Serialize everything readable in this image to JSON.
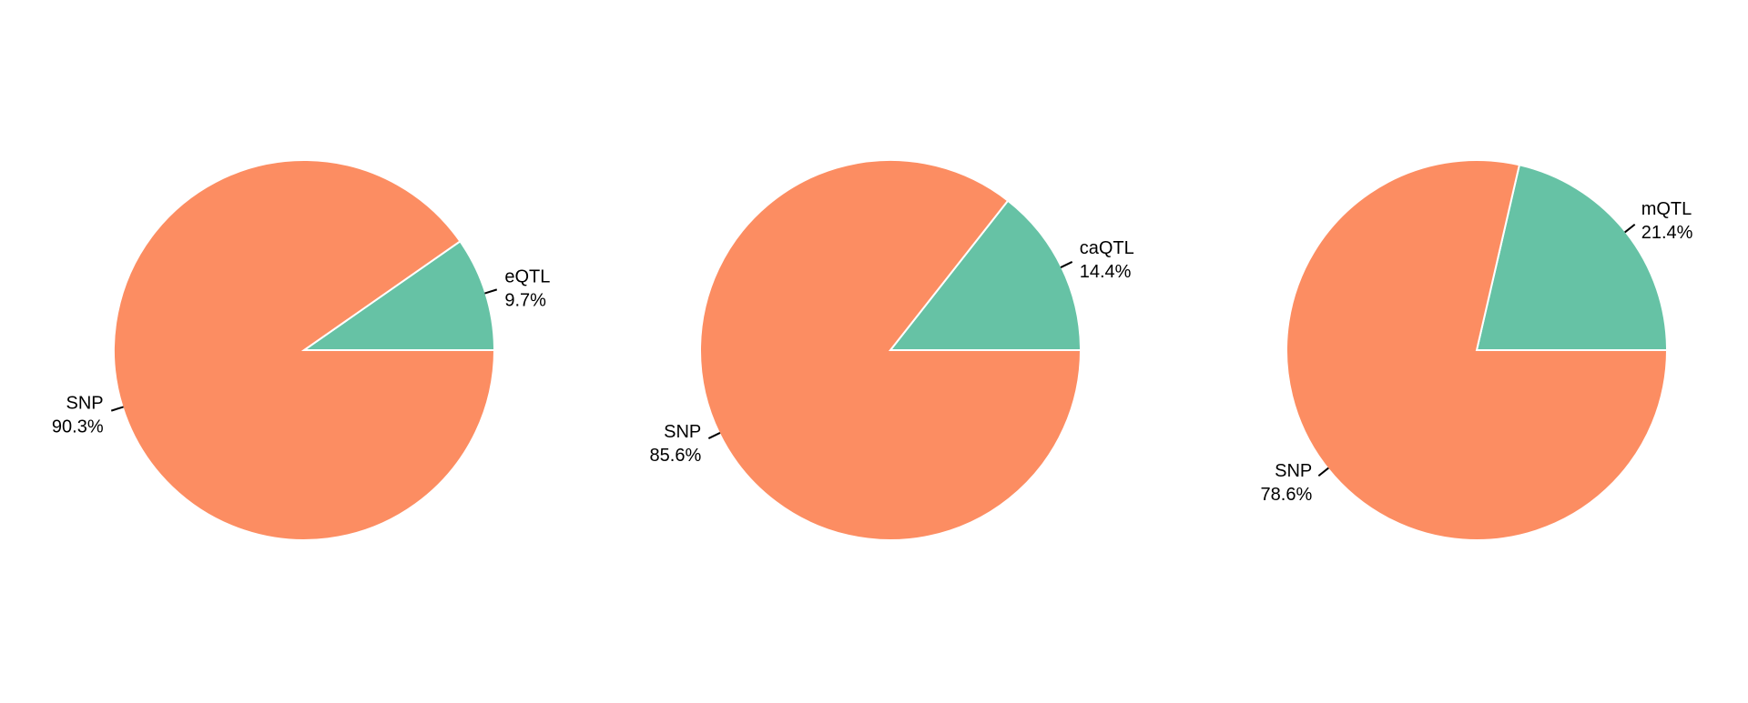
{
  "colors": {
    "qtl": "#66c2a5",
    "snp": "#fc8d62"
  },
  "chart_data": [
    {
      "type": "pie",
      "title": "",
      "slices": [
        {
          "label": "eQTL",
          "value": 9.7,
          "percent": "9.7%"
        },
        {
          "label": "SNP",
          "value": 90.3,
          "percent": "90.3%"
        }
      ]
    },
    {
      "type": "pie",
      "title": "",
      "slices": [
        {
          "label": "caQTL",
          "value": 14.4,
          "percent": "14.4%"
        },
        {
          "label": "SNP",
          "value": 85.6,
          "percent": "85.6%"
        }
      ]
    },
    {
      "type": "pie",
      "title": "",
      "slices": [
        {
          "label": "mQTL",
          "value": 21.4,
          "percent": "21.4%"
        },
        {
          "label": "SNP",
          "value": 78.6,
          "percent": "78.6%"
        }
      ]
    }
  ]
}
